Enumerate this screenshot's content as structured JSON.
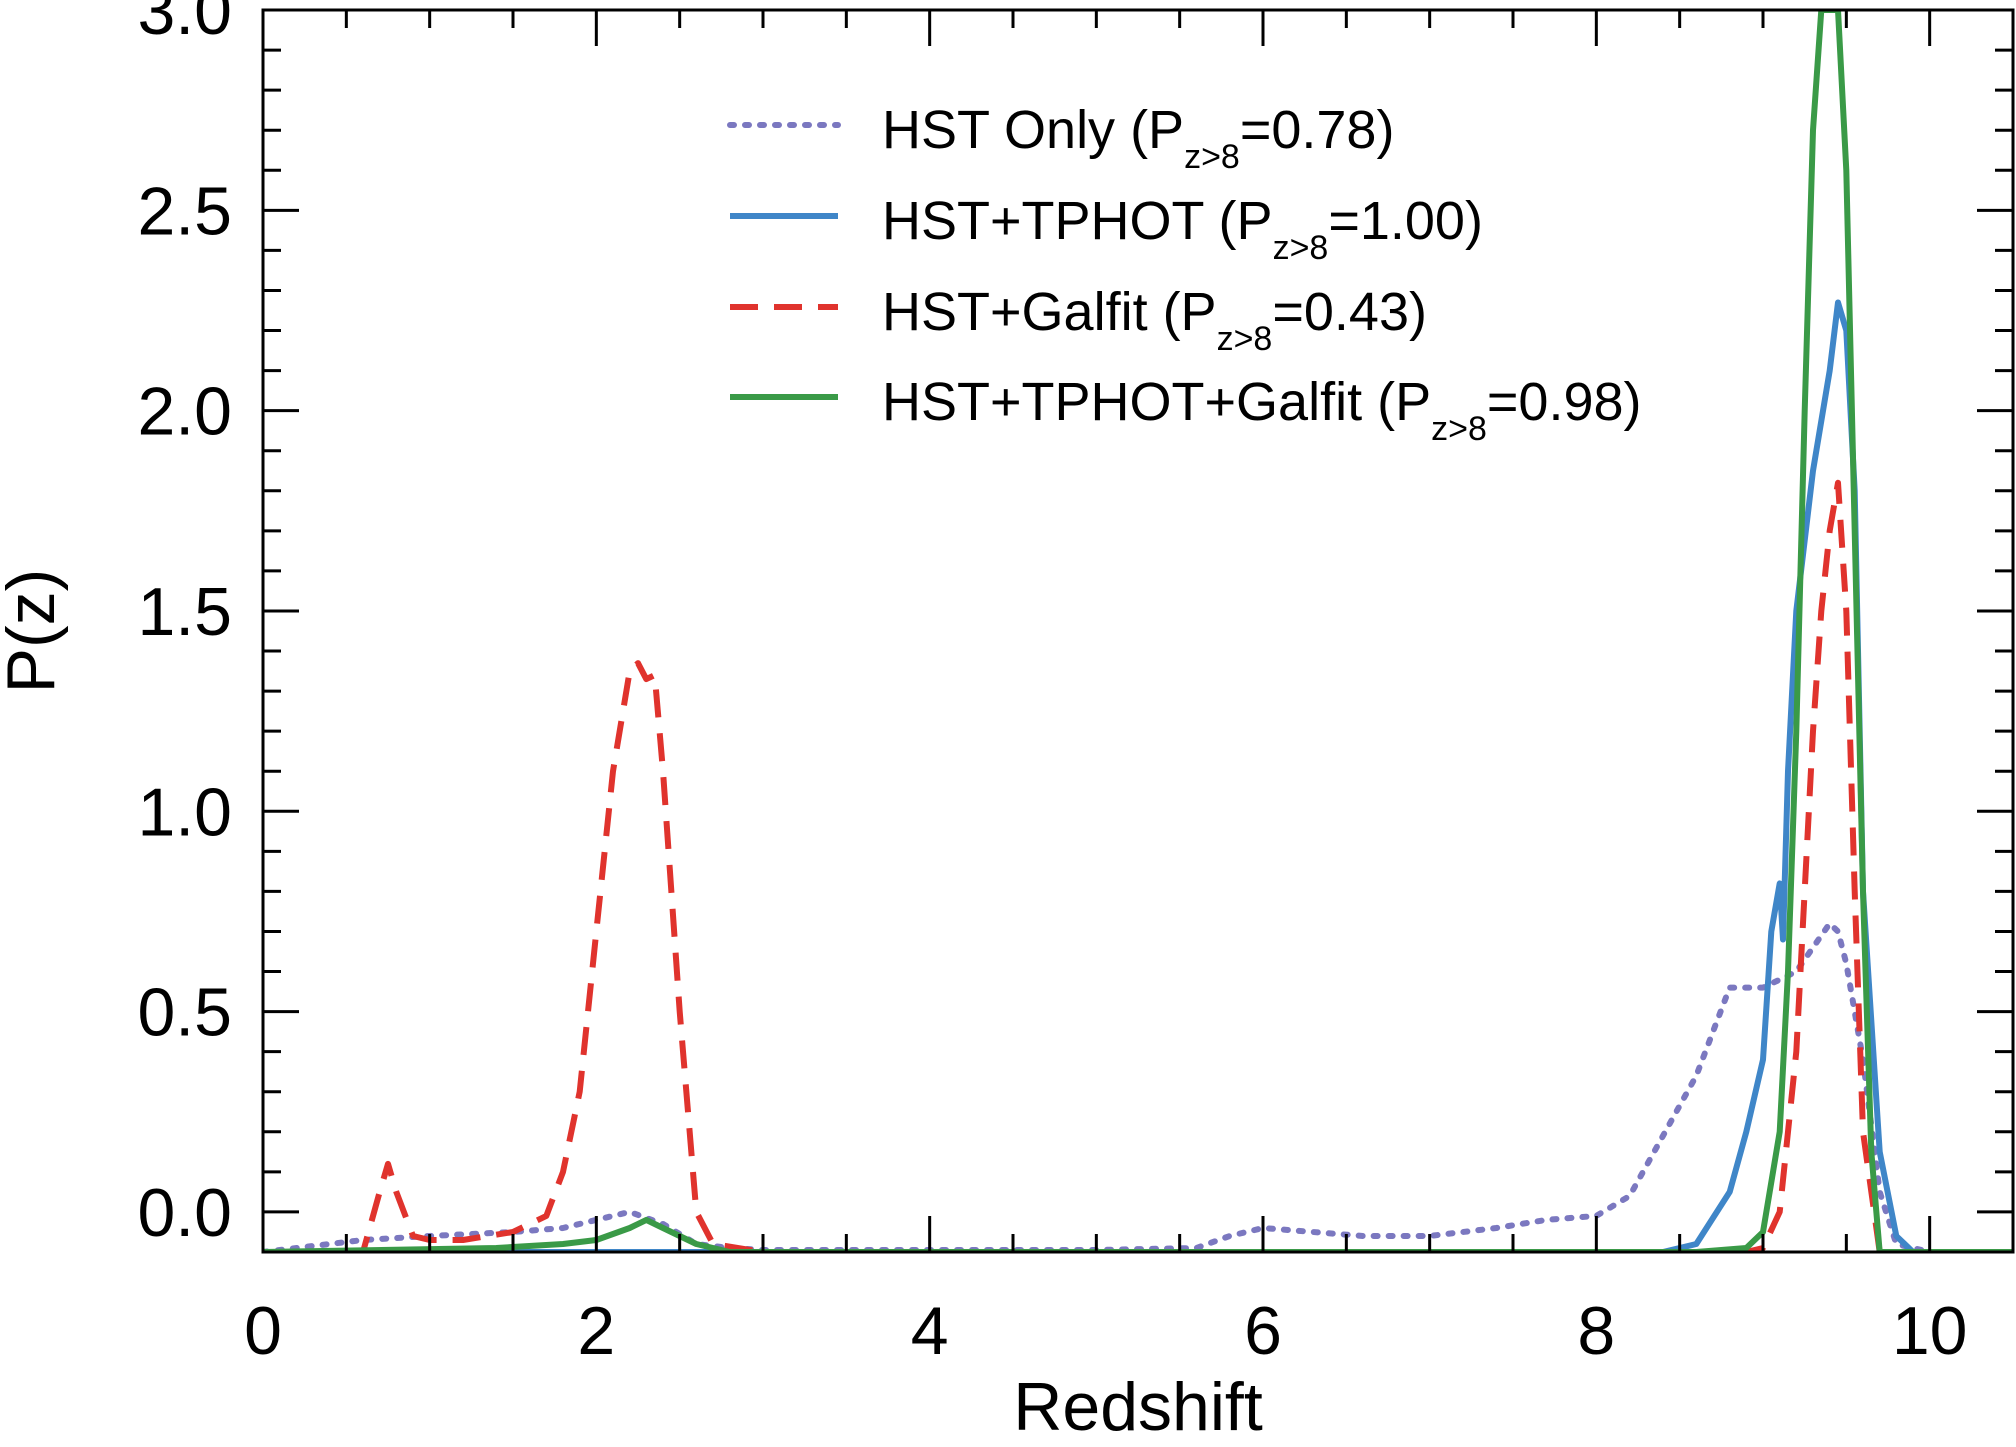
{
  "chart_data": {
    "type": "line",
    "title": "",
    "xlabel": "Redshift",
    "ylabel": "P(z)",
    "xlim": [
      0,
      10.5
    ],
    "ylim": [
      -0.1,
      3.0
    ],
    "xticks": [
      0,
      2,
      4,
      6,
      8,
      10
    ],
    "xtick_labels": [
      "0",
      "2",
      "4",
      "6",
      "8",
      "10"
    ],
    "yticks": [
      0.0,
      0.5,
      1.0,
      1.5,
      2.0,
      2.5,
      3.0
    ],
    "ytick_labels": [
      "0.0",
      "0.5",
      "1.0",
      "1.5",
      "2.0",
      "2.5",
      "3.0"
    ],
    "grid": false,
    "legend_position": "top-right",
    "legend_sub": "z>8",
    "series": [
      {
        "name": "HST Only",
        "legend_prefix": "HST Only (P",
        "legend_suffix": "=0.78)",
        "color": "#7b78c0",
        "dash": "dotted",
        "x": [
          0.0,
          0.6,
          1.0,
          1.5,
          1.8,
          2.0,
          2.2,
          2.4,
          2.6,
          2.8,
          3.0,
          4.0,
          5.0,
          5.6,
          5.8,
          6.0,
          6.3,
          6.6,
          7.0,
          7.4,
          7.7,
          8.0,
          8.2,
          8.4,
          8.6,
          8.8,
          9.0,
          9.1,
          9.2,
          9.3,
          9.4,
          9.45,
          9.5,
          9.6,
          9.7,
          9.8,
          10.0,
          10.5
        ],
        "y": [
          -0.1,
          -0.07,
          -0.06,
          -0.05,
          -0.04,
          -0.02,
          0.0,
          -0.03,
          -0.08,
          -0.09,
          -0.095,
          -0.095,
          -0.095,
          -0.09,
          -0.06,
          -0.04,
          -0.05,
          -0.06,
          -0.06,
          -0.04,
          -0.02,
          -0.01,
          0.04,
          0.19,
          0.34,
          0.56,
          0.56,
          0.58,
          0.6,
          0.66,
          0.72,
          0.7,
          0.62,
          0.38,
          0.05,
          -0.08,
          -0.1,
          -0.1
        ]
      },
      {
        "name": "HST+TPHOT",
        "legend_prefix": "HST+TPHOT (P",
        "legend_suffix": "=1.00)",
        "color": "#3f86c8",
        "dash": "solid",
        "x": [
          0.0,
          8.4,
          8.6,
          8.8,
          8.9,
          9.0,
          9.05,
          9.1,
          9.12,
          9.15,
          9.2,
          9.3,
          9.4,
          9.45,
          9.5,
          9.55,
          9.6,
          9.7,
          9.8,
          9.9,
          10.5
        ],
        "y": [
          -0.1,
          -0.1,
          -0.08,
          0.05,
          0.2,
          0.38,
          0.7,
          0.82,
          0.68,
          1.1,
          1.5,
          1.85,
          2.1,
          2.27,
          2.2,
          1.8,
          0.8,
          0.15,
          -0.06,
          -0.1,
          -0.1
        ]
      },
      {
        "name": "HST+Galfit",
        "legend_prefix": "HST+Galfit (P",
        "legend_suffix": "=0.43)",
        "color": "#e0332d",
        "dash": "dashed",
        "x": [
          0.0,
          0.6,
          0.7,
          0.75,
          0.8,
          0.9,
          1.0,
          1.2,
          1.5,
          1.7,
          1.8,
          1.9,
          2.0,
          2.1,
          2.2,
          2.25,
          2.3,
          2.35,
          2.4,
          2.5,
          2.6,
          2.7,
          3.0,
          8.5,
          8.9,
          9.0,
          9.1,
          9.2,
          9.3,
          9.35,
          9.4,
          9.45,
          9.5,
          9.55,
          9.6,
          9.7,
          10.5
        ],
        "y": [
          -0.1,
          -0.1,
          0.05,
          0.12,
          0.05,
          -0.06,
          -0.07,
          -0.07,
          -0.05,
          -0.01,
          0.1,
          0.3,
          0.7,
          1.1,
          1.35,
          1.37,
          1.33,
          1.34,
          1.1,
          0.5,
          0.0,
          -0.08,
          -0.1,
          -0.1,
          -0.1,
          -0.09,
          0.0,
          0.4,
          1.2,
          1.5,
          1.7,
          1.82,
          1.5,
          0.8,
          0.2,
          -0.1,
          -0.1
        ]
      },
      {
        "name": "HST+TPHOT+Galfit",
        "legend_prefix": "HST+TPHOT+Galfit (P",
        "legend_suffix": "=0.98)",
        "color": "#3a9a47",
        "dash": "solid",
        "x": [
          0.0,
          1.4,
          1.8,
          2.0,
          2.2,
          2.3,
          2.4,
          2.6,
          2.8,
          8.6,
          8.9,
          9.0,
          9.1,
          9.15,
          9.2,
          9.25,
          9.3,
          9.35,
          9.4,
          9.45,
          9.5,
          9.55,
          9.6,
          9.65,
          9.7,
          10.5
        ],
        "y": [
          -0.1,
          -0.09,
          -0.08,
          -0.07,
          -0.04,
          -0.02,
          -0.04,
          -0.08,
          -0.1,
          -0.1,
          -0.09,
          -0.05,
          0.2,
          0.6,
          1.2,
          2.0,
          2.7,
          3.0,
          3.0,
          3.0,
          2.6,
          1.7,
          0.8,
          0.15,
          -0.1,
          -0.1
        ]
      }
    ]
  }
}
